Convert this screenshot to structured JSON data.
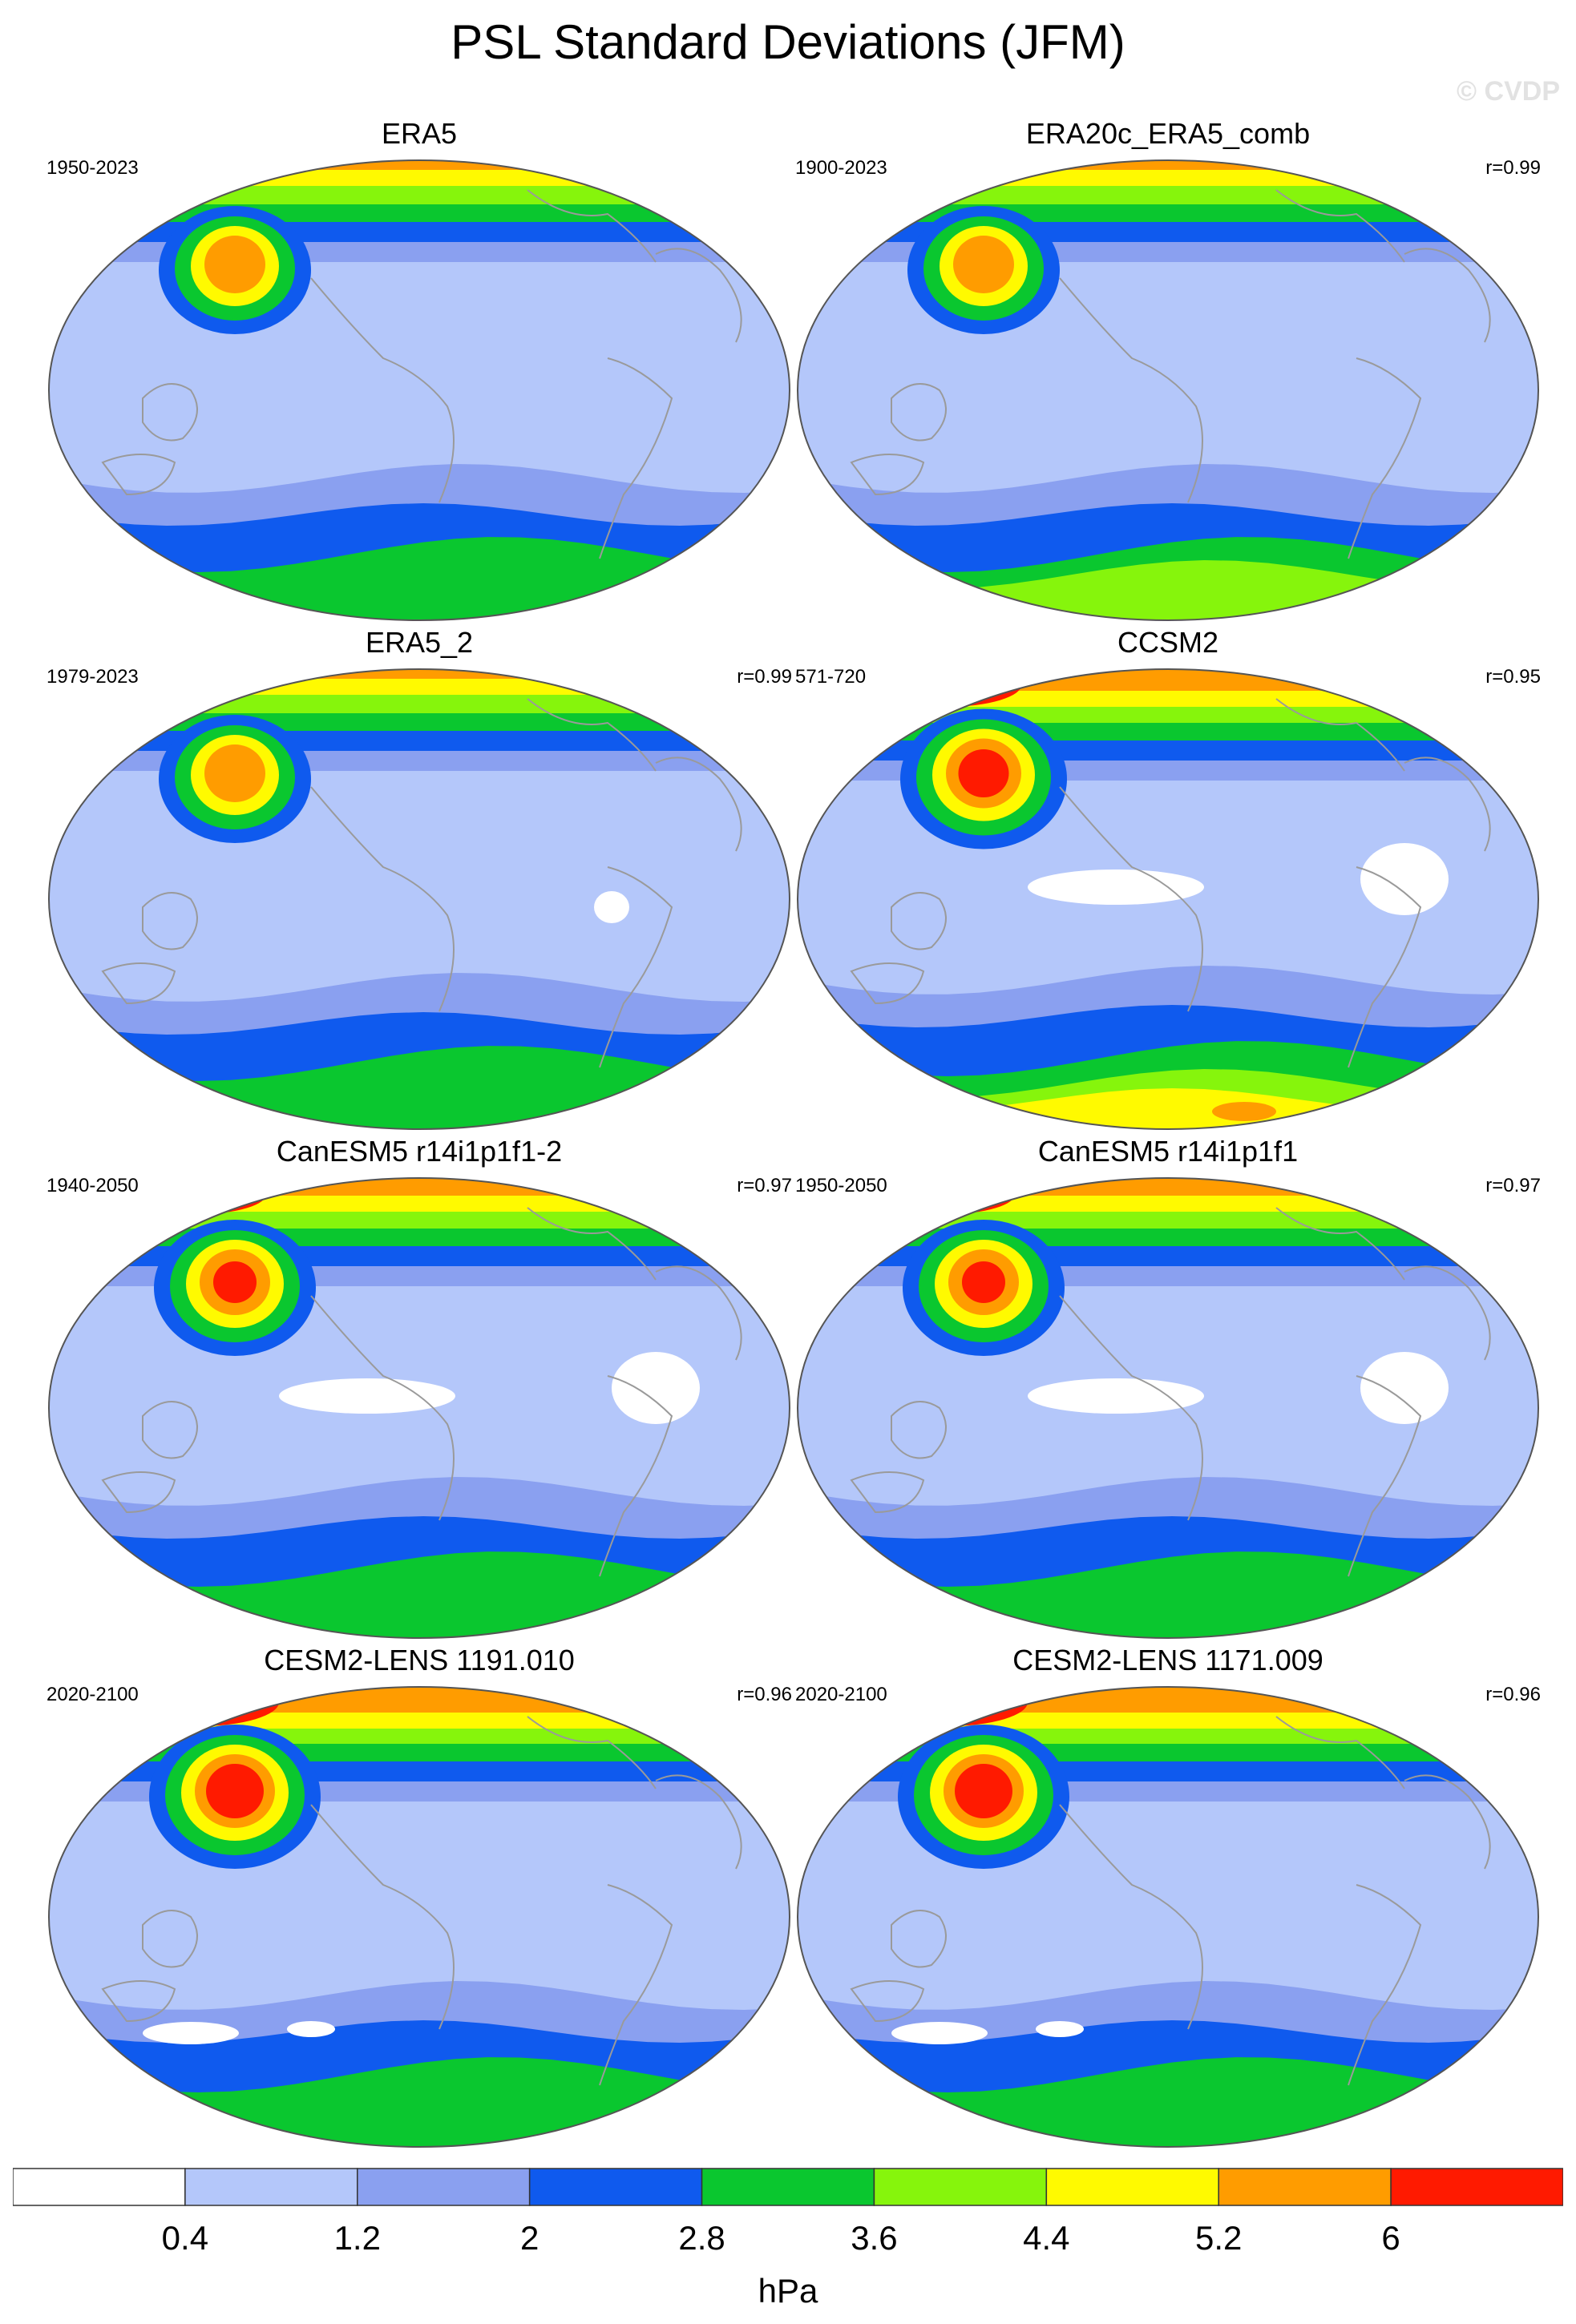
{
  "title": "PSL Standard Deviations (JFM)",
  "watermark": "© CVDP",
  "colors": {
    "levels": [
      "#ffffff",
      "#b4c7fa",
      "#8aa0f0",
      "#0f5aee",
      "#0ac72f",
      "#86f50c",
      "#fffa00",
      "#ff9c00",
      "#ff1a00"
    ],
    "coast": "#9a9a9a",
    "outline": "#555555"
  },
  "colorbar": {
    "labels": [
      "0.4",
      "1.2",
      "2",
      "2.8",
      "3.6",
      "4.4",
      "5.2",
      "6"
    ],
    "units": "hPa"
  },
  "panels": [
    {
      "title": "ERA5",
      "period": "1950-2023",
      "corr": "",
      "icon": "global-map-icon"
    },
    {
      "title": "ERA20c_ERA5_comb",
      "period": "1900-2023",
      "corr": "r=0.99",
      "icon": "global-map-icon"
    },
    {
      "title": "ERA5_2",
      "period": "1979-2023",
      "corr": "r=0.99",
      "icon": "global-map-icon"
    },
    {
      "title": "CCSM2",
      "period": "571-720",
      "corr": "r=0.95",
      "icon": "global-map-icon"
    },
    {
      "title": "CanESM5 r14i1p1f1-2",
      "period": "1940-2050",
      "corr": "r=0.97",
      "icon": "global-map-icon"
    },
    {
      "title": "CanESM5 r14i1p1f1",
      "period": "1950-2050",
      "corr": "r=0.97",
      "icon": "global-map-icon"
    },
    {
      "title": "CESM2-LENS 1191.010",
      "period": "2020-2100",
      "corr": "r=0.96",
      "icon": "global-map-icon"
    },
    {
      "title": "CESM2-LENS 1171.009",
      "period": "2020-2100",
      "corr": "r=0.96",
      "icon": "global-map-icon"
    }
  ]
}
